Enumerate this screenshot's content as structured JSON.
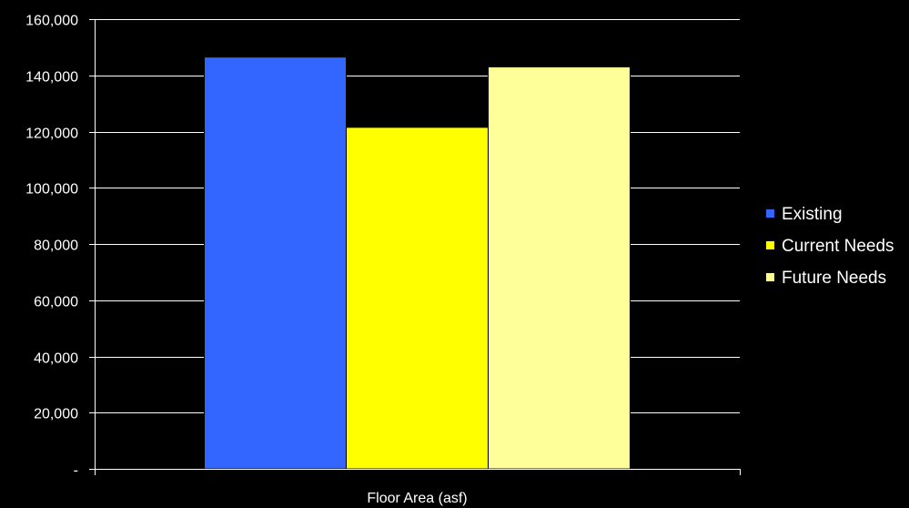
{
  "chart_data": {
    "type": "bar",
    "categories": [
      "Floor Area (asf)"
    ],
    "series": [
      {
        "name": "Existing",
        "values": [
          146500
        ],
        "color": "#3366FF"
      },
      {
        "name": "Current Needs",
        "values": [
          121500
        ],
        "color": "#FFFF00"
      },
      {
        "name": "Future Needs",
        "values": [
          143000
        ],
        "color": "#FFFF99"
      }
    ],
    "title": "",
    "xlabel": "",
    "ylabel": "",
    "ylim": [
      0,
      160000
    ],
    "yticks": [
      0,
      20000,
      40000,
      60000,
      80000,
      100000,
      120000,
      140000,
      160000
    ],
    "ytick_labels": [
      "-",
      "20,000",
      "40,000",
      "60,000",
      "80,000",
      "100,000",
      "120,000",
      "140,000",
      "160,000"
    ],
    "grid": true,
    "legend_position": "right",
    "background_color": "#000000",
    "gridline_color": "#ffffff",
    "text_color": "#ffffff"
  }
}
